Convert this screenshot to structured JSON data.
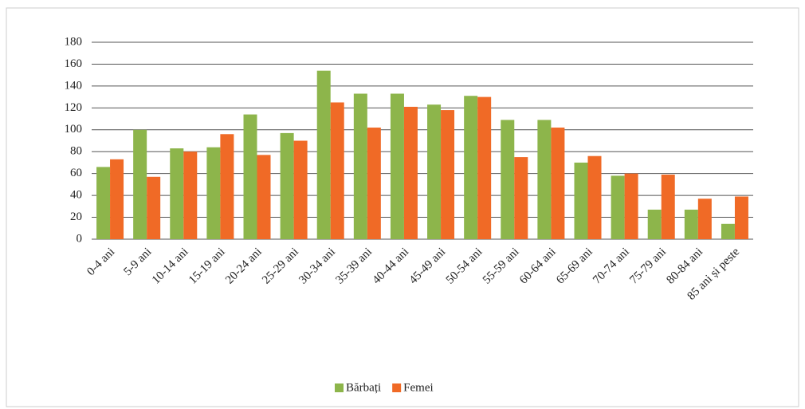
{
  "chart_data": {
    "type": "bar",
    "categories": [
      "0-4 ani",
      "5-9 ani",
      "10-14 ani",
      "15-19 ani",
      "20-24 ani",
      "25-29 ani",
      "30-34 ani",
      "35-39 ani",
      "40-44 ani",
      "45-49 ani",
      "50-54 ani",
      "55-59 ani",
      "60-64 ani",
      "65-69 ani",
      "70-74 ani",
      "75-79 ani",
      "80-84 ani",
      "85 ani și peste"
    ],
    "series": [
      {
        "name": "Bărbați",
        "color": "#8db54b",
        "values": [
          66,
          100,
          83,
          84,
          114,
          97,
          154,
          133,
          133,
          123,
          131,
          109,
          109,
          70,
          58,
          27,
          27,
          14
        ]
      },
      {
        "name": "Femei",
        "color": "#f06a26",
        "values": [
          73,
          57,
          80,
          96,
          77,
          90,
          125,
          102,
          121,
          118,
          130,
          75,
          102,
          76,
          60,
          59,
          37,
          39
        ]
      }
    ],
    "ylim": [
      0,
      180
    ],
    "yticks": [
      0,
      20,
      40,
      60,
      80,
      100,
      120,
      140,
      160,
      180
    ],
    "grid": true,
    "legend": "bottom"
  }
}
